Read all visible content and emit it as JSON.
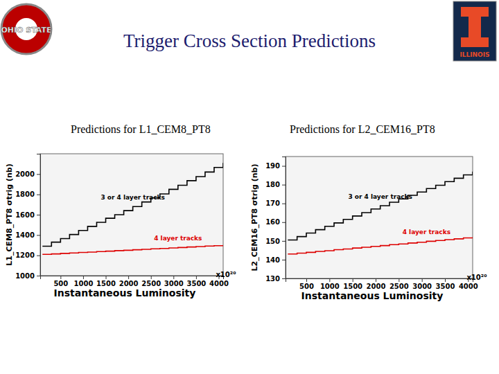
{
  "title": "Trigger Cross Section Predictions",
  "logos": [
    "OHIO STATE",
    "ILLINOIS"
  ],
  "chart_data": [
    {
      "type": "line",
      "title": "Predictions for L1_CEM8_PT8",
      "x_label": "Instantaneous Luminosity",
      "x_unit": "x10²⁰",
      "y_label": "L1_CEM8_PT8  σtrig (nb)",
      "line_style": "step",
      "x": [
        100,
        300,
        500,
        700,
        900,
        1100,
        1300,
        1500,
        1700,
        1900,
        2100,
        2300,
        2500,
        2700,
        2900,
        3100,
        3300,
        3500,
        3700,
        3900,
        4100
      ],
      "series": [
        {
          "name": "3 or 4 layer tracks",
          "color": "#000000",
          "values": [
            1290,
            1330,
            1365,
            1405,
            1445,
            1485,
            1525,
            1565,
            1600,
            1640,
            1680,
            1725,
            1765,
            1805,
            1850,
            1890,
            1935,
            1975,
            2020,
            2065,
            2110
          ]
        },
        {
          "name": "4 layer tracks",
          "color": "#dd0000",
          "values": [
            1210,
            1214,
            1219,
            1223,
            1228,
            1232,
            1237,
            1241,
            1246,
            1250,
            1255,
            1259,
            1264,
            1268,
            1273,
            1277,
            1282,
            1286,
            1291,
            1295,
            1300
          ]
        }
      ],
      "xlim": [
        50,
        4100
      ],
      "xticks": [
        500,
        1000,
        1500,
        2000,
        2500,
        3000,
        3500,
        4000
      ],
      "ylim": [
        1000,
        2200
      ],
      "yticks": [
        1000,
        1200,
        1400,
        1600,
        1800,
        2000
      ]
    },
    {
      "type": "line",
      "title": "Predictions for L2_CEM16_PT8",
      "x_label": "Instantaneous Luminosity",
      "x_unit": "x10²⁰",
      "y_label": "L2_CEM16_PT8  σtrig (nb)",
      "line_style": "step",
      "x": [
        100,
        300,
        500,
        700,
        900,
        1100,
        1300,
        1500,
        1700,
        1900,
        2100,
        2300,
        2500,
        2700,
        2900,
        3100,
        3300,
        3500,
        3700,
        3900,
        4100
      ],
      "series": [
        {
          "name": "3 or 4 layer tracks",
          "color": "#000000",
          "values": [
            150.5,
            152.3,
            154.2,
            156.0,
            157.8,
            159.6,
            161.5,
            163.3,
            165.1,
            167.0,
            168.8,
            170.6,
            172.4,
            174.3,
            176.1,
            177.9,
            179.7,
            181.6,
            183.4,
            185.2,
            187.0
          ]
        },
        {
          "name": "4 layer tracks",
          "color": "#dd0000",
          "values": [
            143.0,
            143.5,
            143.9,
            144.4,
            144.8,
            145.3,
            145.7,
            146.2,
            146.6,
            147.1,
            147.5,
            148.0,
            148.4,
            148.9,
            149.3,
            149.8,
            150.2,
            150.7,
            151.1,
            151.6,
            152.0
          ]
        }
      ],
      "xlim": [
        50,
        4100
      ],
      "xticks": [
        500,
        1000,
        1500,
        2000,
        2500,
        3000,
        3500,
        4000
      ],
      "ylim": [
        130,
        195
      ],
      "yticks": [
        130,
        140,
        150,
        160,
        170,
        180,
        190
      ]
    }
  ]
}
